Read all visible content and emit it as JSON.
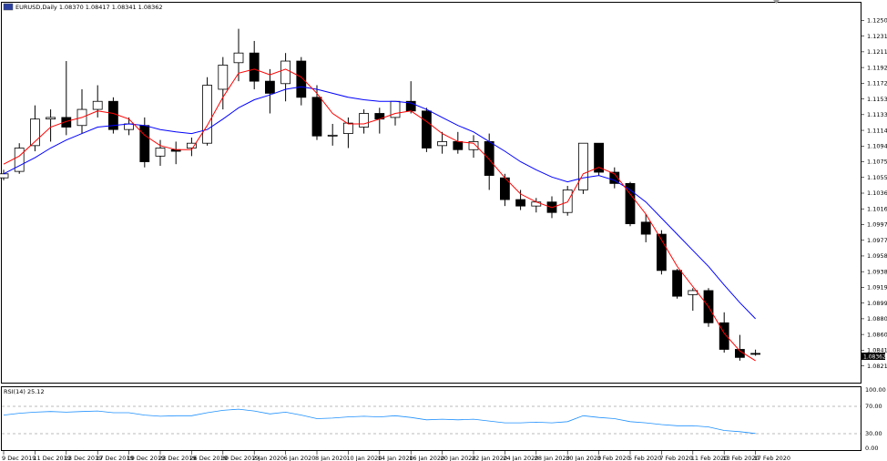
{
  "header": {
    "symbol_text": "EURUSD,Daily  1.08370 1.08417 1.08341 1.08362"
  },
  "rsi": {
    "label": "RSI(14) 25.12",
    "levels_labels": [
      "100.00",
      "70.00",
      "30.00",
      "0.00"
    ]
  },
  "chart_data": {
    "type": "candlestick",
    "symbol": "EURUSD",
    "timeframe": "Daily",
    "ohlc_current": {
      "open": 1.0837,
      "high": 1.08417,
      "low": 1.08341,
      "close": 1.08362
    },
    "current_price_label": "1.08362",
    "price_axis_labels": [
      "1.12505",
      "1.12310",
      "1.12115",
      "1.11920",
      "1.11725",
      "1.11530",
      "1.11335",
      "1.11140",
      "1.10945",
      "1.10750",
      "1.10555",
      "1.10360",
      "1.10165",
      "1.09970",
      "1.09775",
      "1.09580",
      "1.09385",
      "1.09190",
      "1.08995",
      "1.08800",
      "1.08605",
      "1.08410",
      "1.08215"
    ],
    "ylim": [
      1.0812,
      1.126
    ],
    "date_axis_labels": [
      "9 Dec 2019",
      "11 Dec 2019",
      "13 Dec 2019",
      "17 Dec 2019",
      "19 Dec 2019",
      "23 Dec 2019",
      "26 Dec 2019",
      "30 Dec 2019",
      "2 Jan 2020",
      "6 Jan 2020",
      "8 Jan 2020",
      "10 Jan 2020",
      "14 Jan 2020",
      "16 Jan 2020",
      "20 Jan 2020",
      "22 Jan 2020",
      "24 Jan 2020",
      "28 Jan 2020",
      "30 Jan 2020",
      "3 Feb 2020",
      "5 Feb 2020",
      "7 Feb 2020",
      "11 Feb 2020",
      "13 Feb 2020",
      "17 Feb 2020"
    ],
    "candles": [
      {
        "o": 1.1055,
        "h": 1.1065,
        "l": 1.1052,
        "c": 1.106
      },
      {
        "o": 1.1063,
        "h": 1.1098,
        "l": 1.106,
        "c": 1.1092
      },
      {
        "o": 1.1095,
        "h": 1.1145,
        "l": 1.1088,
        "c": 1.1128
      },
      {
        "o": 1.1128,
        "h": 1.114,
        "l": 1.11,
        "c": 1.113
      },
      {
        "o": 1.113,
        "h": 1.12,
        "l": 1.1108,
        "c": 1.1118
      },
      {
        "o": 1.112,
        "h": 1.1165,
        "l": 1.111,
        "c": 1.114
      },
      {
        "o": 1.114,
        "h": 1.117,
        "l": 1.113,
        "c": 1.115
      },
      {
        "o": 1.115,
        "h": 1.1155,
        "l": 1.111,
        "c": 1.1115
      },
      {
        "o": 1.1115,
        "h": 1.113,
        "l": 1.1108,
        "c": 1.1122
      },
      {
        "o": 1.112,
        "h": 1.113,
        "l": 1.1068,
        "c": 1.1075
      },
      {
        "o": 1.1082,
        "h": 1.1102,
        "l": 1.107,
        "c": 1.1092
      },
      {
        "o": 1.109,
        "h": 1.11,
        "l": 1.1072,
        "c": 1.1088
      },
      {
        "o": 1.1092,
        "h": 1.1105,
        "l": 1.1082,
        "c": 1.1098
      },
      {
        "o": 1.1098,
        "h": 1.118,
        "l": 1.1095,
        "c": 1.117
      },
      {
        "o": 1.1165,
        "h": 1.1205,
        "l": 1.114,
        "c": 1.1195
      },
      {
        "o": 1.1198,
        "h": 1.124,
        "l": 1.1175,
        "c": 1.121
      },
      {
        "o": 1.121,
        "h": 1.1225,
        "l": 1.1165,
        "c": 1.1175
      },
      {
        "o": 1.1175,
        "h": 1.119,
        "l": 1.1135,
        "c": 1.116
      },
      {
        "o": 1.1172,
        "h": 1.121,
        "l": 1.115,
        "c": 1.12
      },
      {
        "o": 1.12,
        "h": 1.1205,
        "l": 1.1145,
        "c": 1.1155
      },
      {
        "o": 1.1155,
        "h": 1.117,
        "l": 1.1102,
        "c": 1.1107
      },
      {
        "o": 1.1107,
        "h": 1.1122,
        "l": 1.1095,
        "c": 1.1108
      },
      {
        "o": 1.111,
        "h": 1.113,
        "l": 1.1092,
        "c": 1.1123
      },
      {
        "o": 1.1118,
        "h": 1.114,
        "l": 1.111,
        "c": 1.1135
      },
      {
        "o": 1.1135,
        "h": 1.1142,
        "l": 1.111,
        "c": 1.1128
      },
      {
        "o": 1.113,
        "h": 1.115,
        "l": 1.112,
        "c": 1.115
      },
      {
        "o": 1.115,
        "h": 1.1175,
        "l": 1.1135,
        "c": 1.1138
      },
      {
        "o": 1.1138,
        "h": 1.1142,
        "l": 1.1087,
        "c": 1.1092
      },
      {
        "o": 1.1095,
        "h": 1.1112,
        "l": 1.1085,
        "c": 1.11
      },
      {
        "o": 1.11,
        "h": 1.1112,
        "l": 1.1085,
        "c": 1.109
      },
      {
        "o": 1.109,
        "h": 1.1108,
        "l": 1.108,
        "c": 1.11
      },
      {
        "o": 1.11,
        "h": 1.111,
        "l": 1.104,
        "c": 1.1058
      },
      {
        "o": 1.1055,
        "h": 1.106,
        "l": 1.102,
        "c": 1.1028
      },
      {
        "o": 1.1028,
        "h": 1.104,
        "l": 1.1015,
        "c": 1.102
      },
      {
        "o": 1.102,
        "h": 1.103,
        "l": 1.1012,
        "c": 1.1025
      },
      {
        "o": 1.1025,
        "h": 1.1032,
        "l": 1.1005,
        "c": 1.1012
      },
      {
        "o": 1.1012,
        "h": 1.1045,
        "l": 1.1008,
        "c": 1.104
      },
      {
        "o": 1.104,
        "h": 1.1098,
        "l": 1.1035,
        "c": 1.1098
      },
      {
        "o": 1.1098,
        "h": 1.1098,
        "l": 1.1058,
        "c": 1.1062
      },
      {
        "o": 1.1062,
        "h": 1.1068,
        "l": 1.1042,
        "c": 1.1048
      },
      {
        "o": 1.1048,
        "h": 1.105,
        "l": 1.0995,
        "c": 1.0998
      },
      {
        "o": 1.1,
        "h": 1.101,
        "l": 1.0975,
        "c": 1.0985
      },
      {
        "o": 1.0985,
        "h": 1.099,
        "l": 1.0935,
        "c": 1.094
      },
      {
        "o": 1.094,
        "h": 1.0942,
        "l": 1.0905,
        "c": 1.0908
      },
      {
        "o": 1.091,
        "h": 1.0918,
        "l": 1.089,
        "c": 1.0915
      },
      {
        "o": 1.0915,
        "h": 1.0918,
        "l": 1.087,
        "c": 1.0875
      },
      {
        "o": 1.0875,
        "h": 1.0888,
        "l": 1.0838,
        "c": 1.0842
      },
      {
        "o": 1.0842,
        "h": 1.086,
        "l": 1.0828,
        "c": 1.0832
      },
      {
        "o": 1.0837,
        "h": 1.08417,
        "l": 1.08341,
        "c": 1.08362
      }
    ],
    "ma_fast_color": "#ff0000",
    "ma_slow_color": "#0000ff",
    "ma_fast": [
      1.1072,
      1.1082,
      1.11,
      1.1118,
      1.1125,
      1.113,
      1.1138,
      1.1135,
      1.1128,
      1.1108,
      1.1095,
      1.109,
      1.109,
      1.112,
      1.1155,
      1.1185,
      1.119,
      1.1183,
      1.119,
      1.118,
      1.116,
      1.1135,
      1.1122,
      1.1122,
      1.1128,
      1.1135,
      1.1138,
      1.1125,
      1.111,
      1.11,
      1.1098,
      1.1078,
      1.1055,
      1.1035,
      1.1025,
      1.1018,
      1.1025,
      1.106,
      1.1068,
      1.106,
      1.1035,
      1.101,
      1.0978,
      1.0945,
      1.092,
      1.0895,
      1.0862,
      1.084,
      1.0828
    ],
    "ma_slow": [
      1.106,
      1.107,
      1.108,
      1.1092,
      1.1102,
      1.111,
      1.1118,
      1.112,
      1.1122,
      1.112,
      1.1115,
      1.1112,
      1.111,
      1.1115,
      1.1128,
      1.1142,
      1.1152,
      1.1158,
      1.1165,
      1.1168,
      1.1165,
      1.116,
      1.1155,
      1.1152,
      1.115,
      1.115,
      1.1148,
      1.114,
      1.113,
      1.112,
      1.1112,
      1.11,
      1.1088,
      1.1075,
      1.1065,
      1.1056,
      1.105,
      1.1055,
      1.1058,
      1.1052,
      1.104,
      1.1025,
      1.1005,
      1.0985,
      1.0965,
      1.0945,
      1.0922,
      1.09,
      1.088
    ],
    "rsi_values": [
      56,
      59,
      61,
      62,
      61,
      62,
      63,
      60,
      60,
      56,
      54,
      55,
      55,
      60,
      64,
      66,
      63,
      58,
      61,
      56,
      50,
      51,
      53,
      54,
      53,
      55,
      52,
      48,
      49,
      48,
      49,
      46,
      43,
      43,
      44,
      43,
      45,
      55,
      52,
      50,
      45,
      43,
      40,
      38,
      38,
      36,
      30,
      28,
      25
    ]
  }
}
